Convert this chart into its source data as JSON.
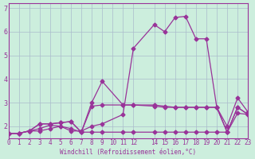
{
  "xlabel": "Windchill (Refroidissement éolien,°C)",
  "ylabel": "",
  "bg_color": "#cceedd",
  "grid_color": "#aabbcc",
  "line_color": "#993399",
  "xlim": [
    0,
    23
  ],
  "ylim": [
    1.5,
    7.2
  ],
  "xticks": [
    0,
    1,
    2,
    3,
    4,
    5,
    6,
    7,
    8,
    9,
    10,
    11,
    12,
    14,
    15,
    16,
    17,
    18,
    19,
    20,
    21,
    22,
    23
  ],
  "yticks": [
    2,
    3,
    4,
    5,
    6,
    7
  ],
  "lines": [
    [
      1.7,
      1.7,
      1.8,
      1.8,
      1.9,
      2.0,
      1.8,
      1.8,
      2.0,
      2.1,
      2.5,
      5.3,
      6.3,
      6.0,
      6.6,
      6.65,
      5.7,
      5.7,
      2.8,
      2.0,
      3.2,
      2.6
    ],
    [
      1.7,
      1.7,
      1.8,
      2.1,
      2.1,
      2.15,
      2.2,
      1.75,
      3.0,
      3.9,
      2.9,
      2.9,
      2.9,
      2.85,
      2.8,
      2.8,
      2.8,
      2.8,
      2.8,
      1.75,
      2.8,
      2.5
    ],
    [
      1.7,
      1.7,
      1.8,
      2.1,
      2.1,
      2.15,
      2.2,
      1.75,
      2.85,
      2.9,
      2.9,
      2.9,
      2.85,
      2.8,
      2.8,
      2.8,
      2.8,
      2.8,
      2.8,
      1.75,
      2.8,
      2.5
    ],
    [
      1.7,
      1.7,
      1.8,
      1.9,
      2.05,
      2.0,
      1.9,
      1.75,
      1.75,
      1.75,
      1.75,
      1.75,
      1.75,
      1.75,
      1.75,
      1.75,
      1.75,
      1.75,
      1.75,
      1.75,
      2.55,
      2.5
    ]
  ],
  "x_indices": [
    0,
    1,
    2,
    3,
    4,
    5,
    6,
    7,
    8,
    9,
    11,
    12,
    14,
    15,
    16,
    17,
    18,
    19,
    20,
    21,
    22,
    23
  ]
}
